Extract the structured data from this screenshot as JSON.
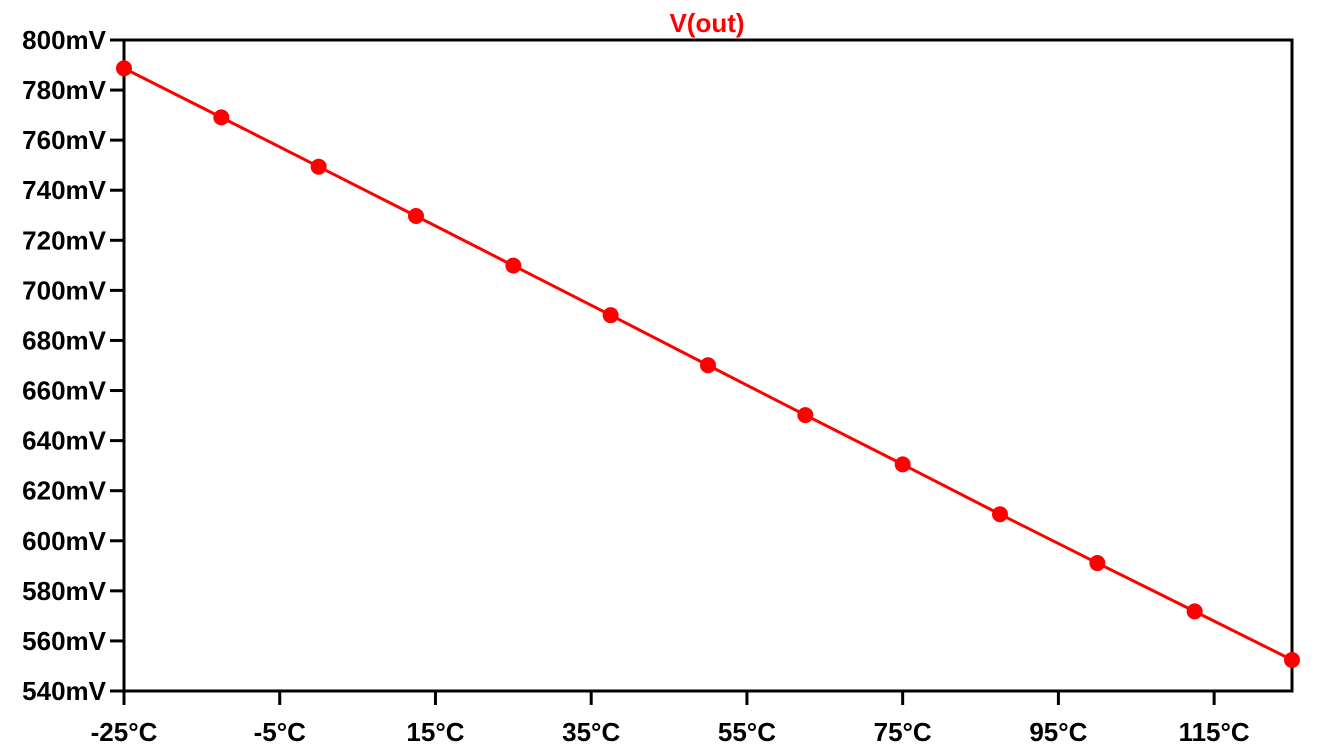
{
  "chart_data": {
    "type": "line",
    "title": "V(out)",
    "xlabel": "",
    "ylabel": "",
    "xlim": [
      -25,
      125
    ],
    "ylim": [
      540,
      800
    ],
    "x_ticks": [
      -25,
      -5,
      15,
      35,
      55,
      75,
      95,
      115
    ],
    "x_tick_labels": [
      "-25°C",
      "-5°C",
      "15°C",
      "35°C",
      "55°C",
      "75°C",
      "95°C",
      "115°C"
    ],
    "y_ticks": [
      800,
      780,
      760,
      740,
      720,
      700,
      680,
      660,
      640,
      620,
      600,
      580,
      560,
      540
    ],
    "y_tick_labels": [
      "800mV",
      "780mV",
      "760mV",
      "740mV",
      "720mV",
      "700mV",
      "680mV",
      "660mV",
      "640mV",
      "620mV",
      "600mV",
      "580mV",
      "560mV",
      "540mV"
    ],
    "grid": false,
    "series": [
      {
        "name": "V(out)",
        "color": "#ff0000",
        "x": [
          -25,
          -12.5,
          0,
          12.5,
          25,
          37.5,
          50,
          62.5,
          75,
          87.5,
          100,
          112.5,
          125
        ],
        "values": [
          788.7,
          769.1,
          749.4,
          729.7,
          709.9,
          690.1,
          670.1,
          650.2,
          630.5,
          610.6,
          591.1,
          571.8,
          552.4
        ]
      }
    ]
  }
}
